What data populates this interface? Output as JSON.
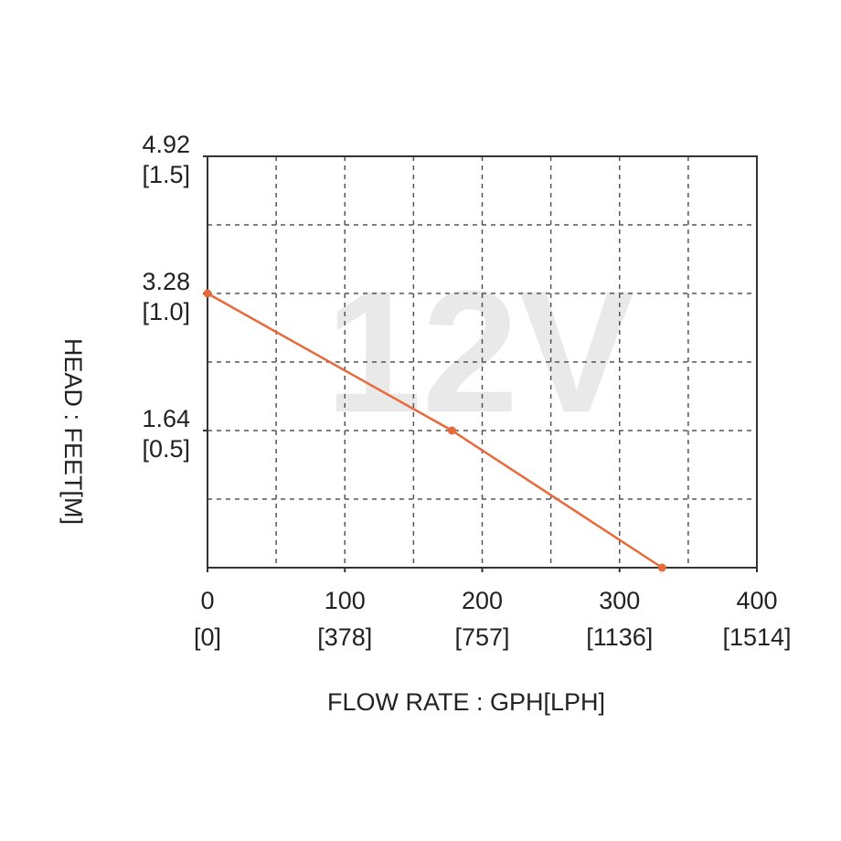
{
  "chart_data": {
    "type": "line",
    "watermark": "12V",
    "x_label": "FLOW RATE : GPH[LPH]",
    "y_label": "HEAD : FEET[M]",
    "x": [
      0,
      178,
      331
    ],
    "values": [
      3.28,
      1.64,
      0
    ],
    "color": "#e8693a",
    "xlim": [
      0,
      400
    ],
    "ylim": [
      0,
      4.92
    ],
    "xticks": [
      0,
      100,
      200,
      300,
      400
    ],
    "xtick_sublabels": [
      "[0]",
      "[378]",
      "[757]",
      "[1136]",
      "[1514]"
    ],
    "yticks": [
      1.64,
      3.28,
      4.92
    ],
    "ytick_sublabels": [
      "[0.5]",
      "[1.0]",
      "[1.5]"
    ],
    "xgrid": [
      50,
      100,
      150,
      200,
      250,
      300,
      350
    ],
    "ygrid": [
      0.82,
      1.64,
      2.46,
      3.28,
      4.1
    ],
    "grid": true
  }
}
